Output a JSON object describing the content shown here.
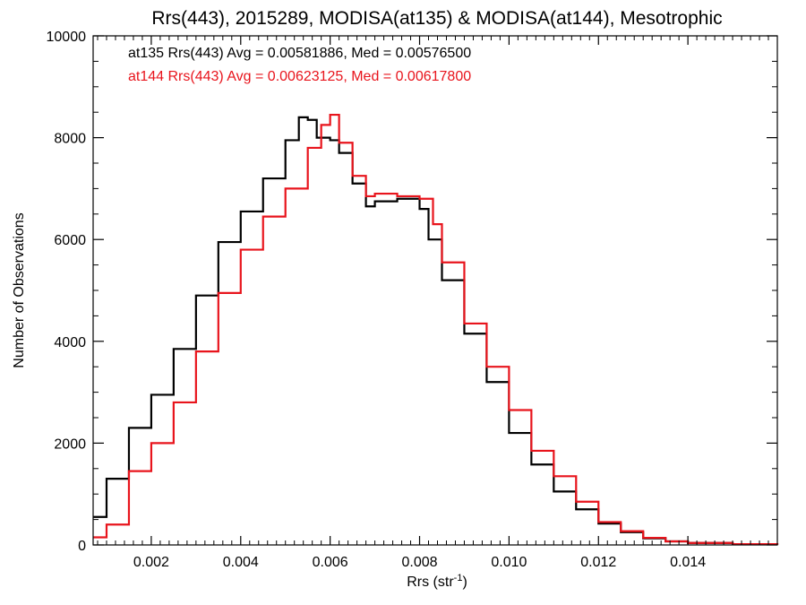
{
  "chart_data": {
    "type": "line",
    "title": "Rrs(443), 2015289, MODISA(at135) & MODISA(at144), Mesotrophic",
    "xlabel": "Rrs (str",
    "xlabel_superscript": "-1",
    "xlabel_suffix": ")",
    "ylabel": "Number of Observations",
    "xlim": [
      0.0007,
      0.016
    ],
    "ylim": [
      0,
      10000
    ],
    "x_ticks": [
      0.002,
      0.004,
      0.006,
      0.008,
      0.01,
      0.012,
      0.014
    ],
    "x_tick_labels": [
      "0.002",
      "0.004",
      "0.006",
      "0.008",
      "0.010",
      "0.012",
      "0.014"
    ],
    "y_ticks": [
      0,
      2000,
      4000,
      6000,
      8000,
      10000
    ],
    "y_tick_labels": [
      "0",
      "2000",
      "4000",
      "6000",
      "8000",
      "10000"
    ],
    "grid": false,
    "style": "step",
    "series": [
      {
        "name": "at135",
        "color": "#000000",
        "annotation": "at135 Rrs(443) Avg = 0.00581886, Med = 0.00576500",
        "x": [
          0.0007,
          0.001,
          0.0015,
          0.002,
          0.0025,
          0.003,
          0.0035,
          0.004,
          0.0045,
          0.005,
          0.0053,
          0.0055,
          0.0057,
          0.006,
          0.0062,
          0.0065,
          0.0068,
          0.007,
          0.0075,
          0.008,
          0.0082,
          0.0085,
          0.009,
          0.0095,
          0.01,
          0.0105,
          0.011,
          0.0115,
          0.012,
          0.0125,
          0.013,
          0.0135,
          0.014,
          0.015,
          0.016
        ],
        "y": [
          550,
          1300,
          2300,
          2950,
          3850,
          4900,
          5950,
          6550,
          7200,
          7950,
          8400,
          8350,
          8000,
          7950,
          7700,
          7100,
          6650,
          6750,
          6800,
          6600,
          6000,
          5200,
          4150,
          3200,
          2200,
          1580,
          1050,
          700,
          420,
          250,
          130,
          70,
          40,
          10,
          5
        ]
      },
      {
        "name": "at144",
        "color": "#e8141c",
        "annotation": "at144 Rrs(443) Avg = 0.00623125, Med = 0.00617800",
        "x": [
          0.0007,
          0.001,
          0.0015,
          0.002,
          0.0025,
          0.003,
          0.0035,
          0.004,
          0.0045,
          0.005,
          0.0055,
          0.0058,
          0.006,
          0.0062,
          0.0065,
          0.0068,
          0.007,
          0.0075,
          0.008,
          0.0083,
          0.0085,
          0.009,
          0.0095,
          0.01,
          0.0105,
          0.011,
          0.0115,
          0.012,
          0.0125,
          0.013,
          0.0135,
          0.014,
          0.015,
          0.016
        ],
        "y": [
          150,
          400,
          1450,
          2000,
          2800,
          3800,
          4950,
          5800,
          6450,
          7000,
          7800,
          8250,
          8450,
          7900,
          7250,
          6850,
          6900,
          6850,
          6800,
          6300,
          5550,
          4350,
          3500,
          2650,
          1850,
          1350,
          850,
          450,
          270,
          140,
          70,
          40,
          15,
          5
        ]
      }
    ]
  }
}
